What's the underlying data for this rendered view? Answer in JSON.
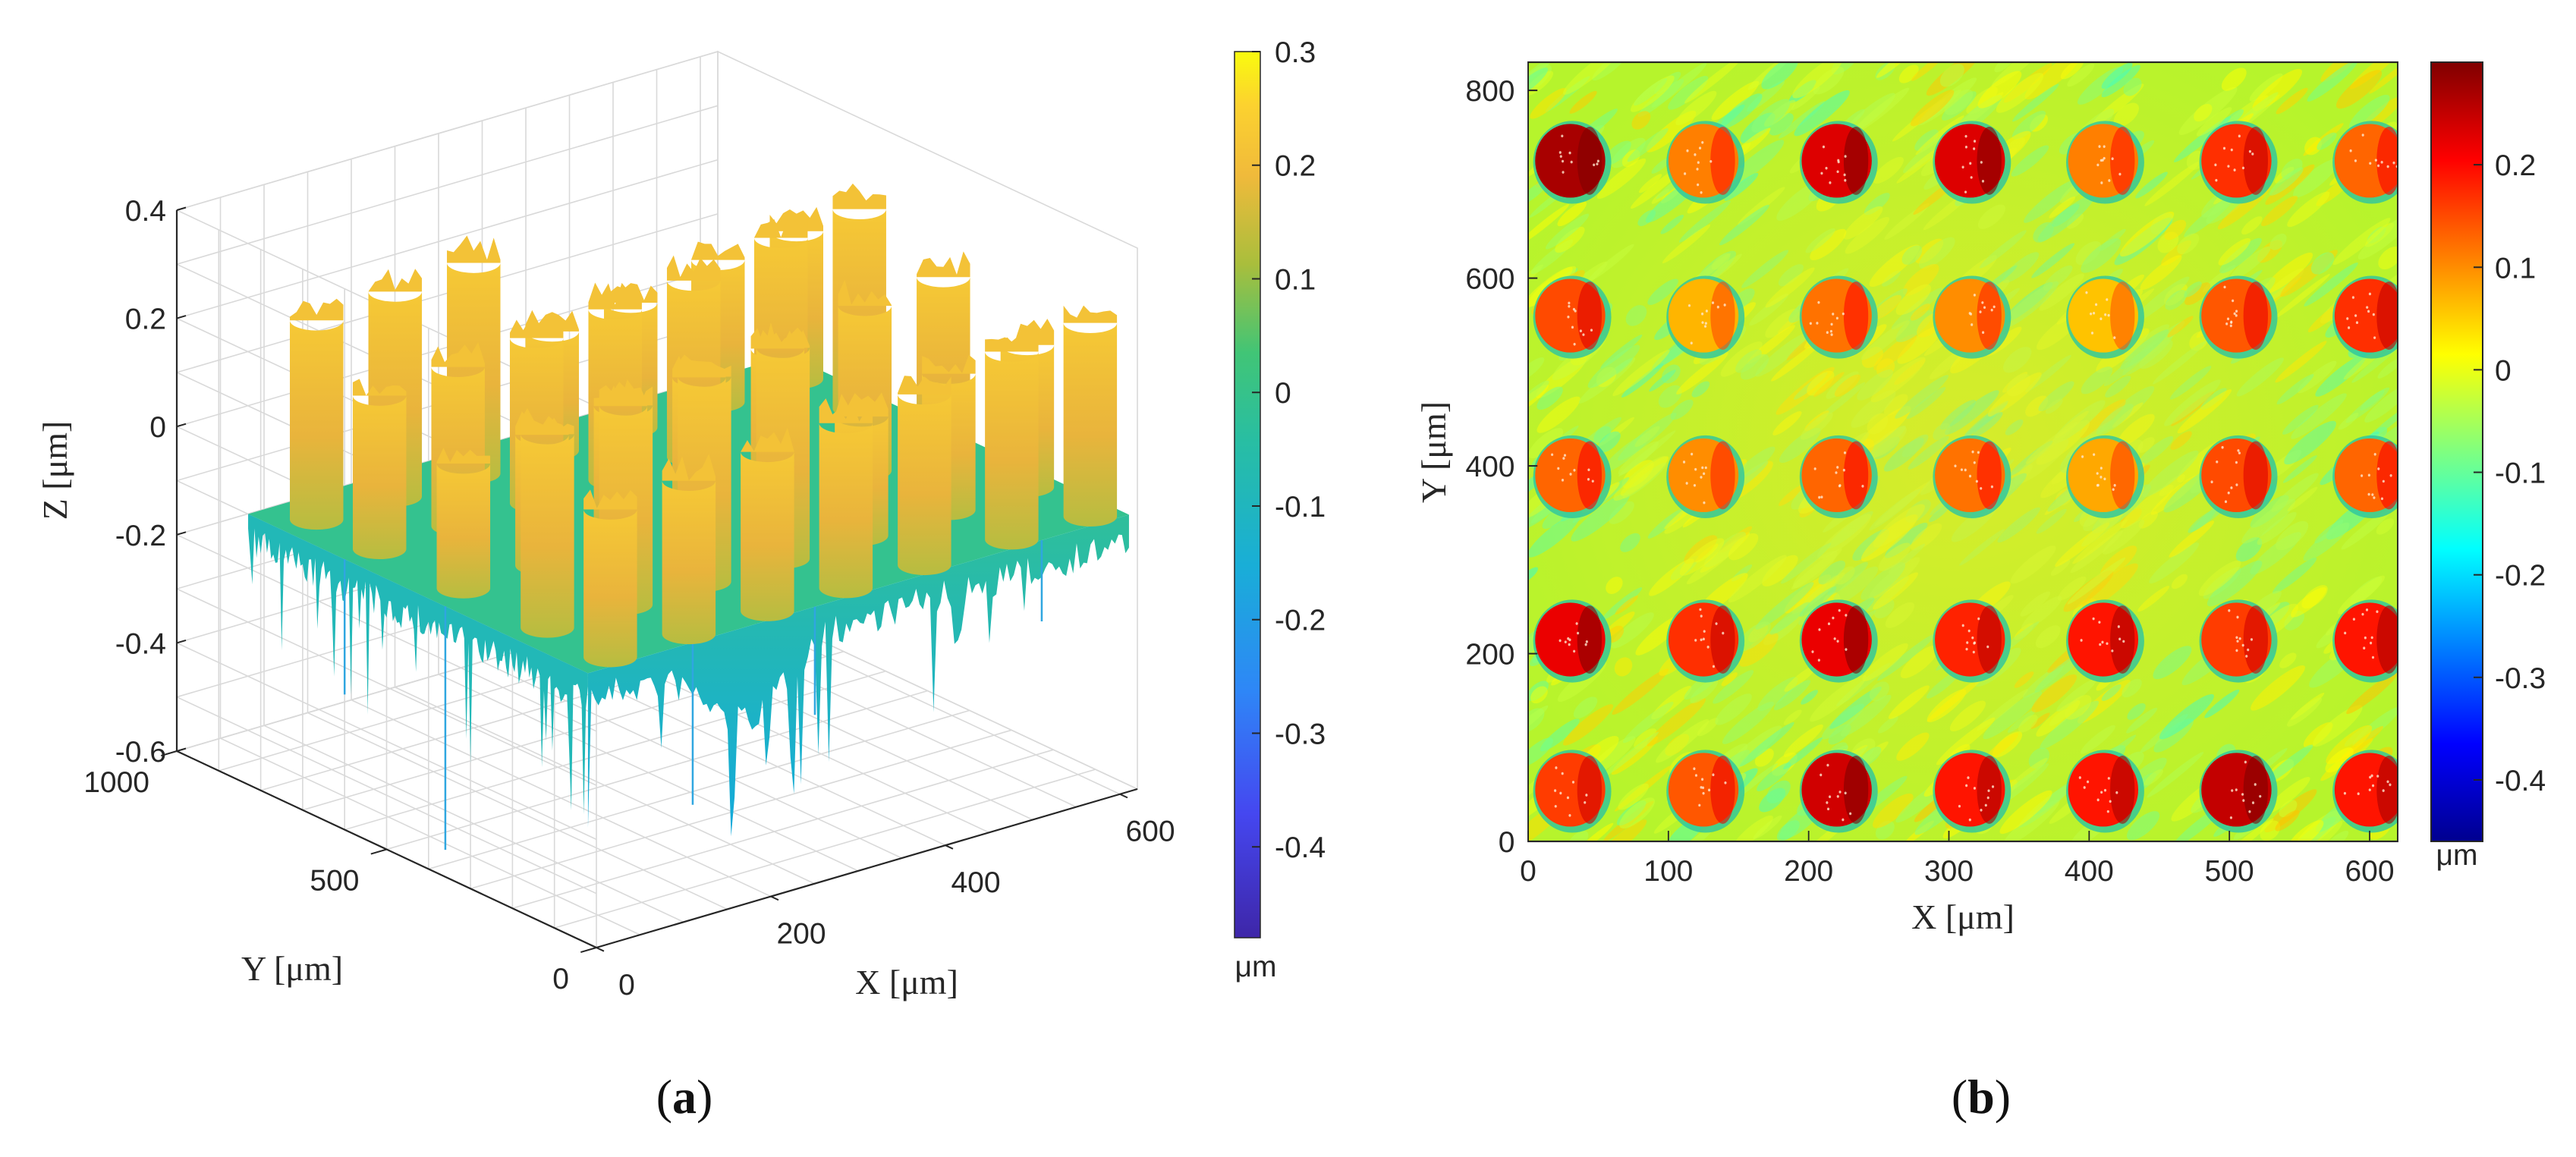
{
  "figure": {
    "panels": [
      {
        "id": "a",
        "caption_open": "(",
        "caption_letter": "a",
        "caption_close": ")"
      },
      {
        "id": "b",
        "caption_open": "(",
        "caption_letter": "b",
        "caption_close": ")"
      }
    ]
  },
  "chart_data": [
    {
      "type": "surface3d",
      "panel": "a",
      "xlabel": "X [μm]",
      "ylabel": "Y [μm]",
      "zlabel": "Z [μm]",
      "xlim": [
        0,
        620
      ],
      "ylim": [
        0,
        1000
      ],
      "zlim": [
        -0.6,
        0.4
      ],
      "x_ticks": [
        "0",
        "200",
        "400",
        "600"
      ],
      "y_ticks": [
        "0",
        "500",
        "1000"
      ],
      "z_ticks": [
        "0.4",
        "0.2",
        "0",
        "-0.2",
        "-0.4",
        "-0.6"
      ],
      "grid": true,
      "description_surface": "5 x 7 array of raised pillars (~+0.2 to +0.35 um) over a noisy base near -0.1 um with downward spikes to about -0.5 um",
      "pillar_rows_y": [
        50,
        200,
        400,
        600,
        750
      ],
      "pillar_cols_x": [
        40,
        130,
        220,
        310,
        400,
        500,
        590
      ],
      "colorbar": {
        "colormap": "parula",
        "range": [
          -0.48,
          0.3
        ],
        "ticks": [
          "0.3",
          "0.2",
          "0.1",
          "0",
          "-0.1",
          "-0.2",
          "-0.3",
          "-0.4"
        ],
        "unit": "μm"
      }
    },
    {
      "type": "heatmap",
      "panel": "b",
      "xlabel": "X [μm]",
      "ylabel": "Y [μm]",
      "xlim": [
        0,
        620
      ],
      "ylim": [
        0,
        830
      ],
      "x_ticks": [
        "0",
        "100",
        "200",
        "300",
        "400",
        "500",
        "600"
      ],
      "y_ticks": [
        "0",
        "200",
        "400",
        "600",
        "800"
      ],
      "grid": false,
      "dots": {
        "cols_x": [
          30,
          125,
          220,
          315,
          410,
          505,
          600
        ],
        "rows_y": [
          55,
          215,
          390,
          560,
          725
        ],
        "radius_um": 25,
        "heights_um": [
          [
            0.16,
            0.14,
            0.24,
            0.19,
            0.19,
            0.25,
            0.19
          ],
          [
            0.22,
            0.17,
            0.22,
            0.18,
            0.19,
            0.16,
            0.19
          ],
          [
            0.13,
            0.1,
            0.13,
            0.12,
            0.08,
            0.15,
            0.13
          ],
          [
            0.15,
            0.07,
            0.12,
            0.1,
            0.06,
            0.14,
            0.17
          ],
          [
            0.27,
            0.11,
            0.23,
            0.23,
            0.11,
            0.17,
            0.13
          ]
        ]
      },
      "background_um": 0.0,
      "colorbar": {
        "colormap": "jet",
        "range": [
          -0.46,
          0.3
        ],
        "ticks": [
          "0.2",
          "0.1",
          "0",
          "-0.1",
          "-0.2",
          "-0.3",
          "-0.4"
        ],
        "unit": "μm"
      }
    }
  ]
}
